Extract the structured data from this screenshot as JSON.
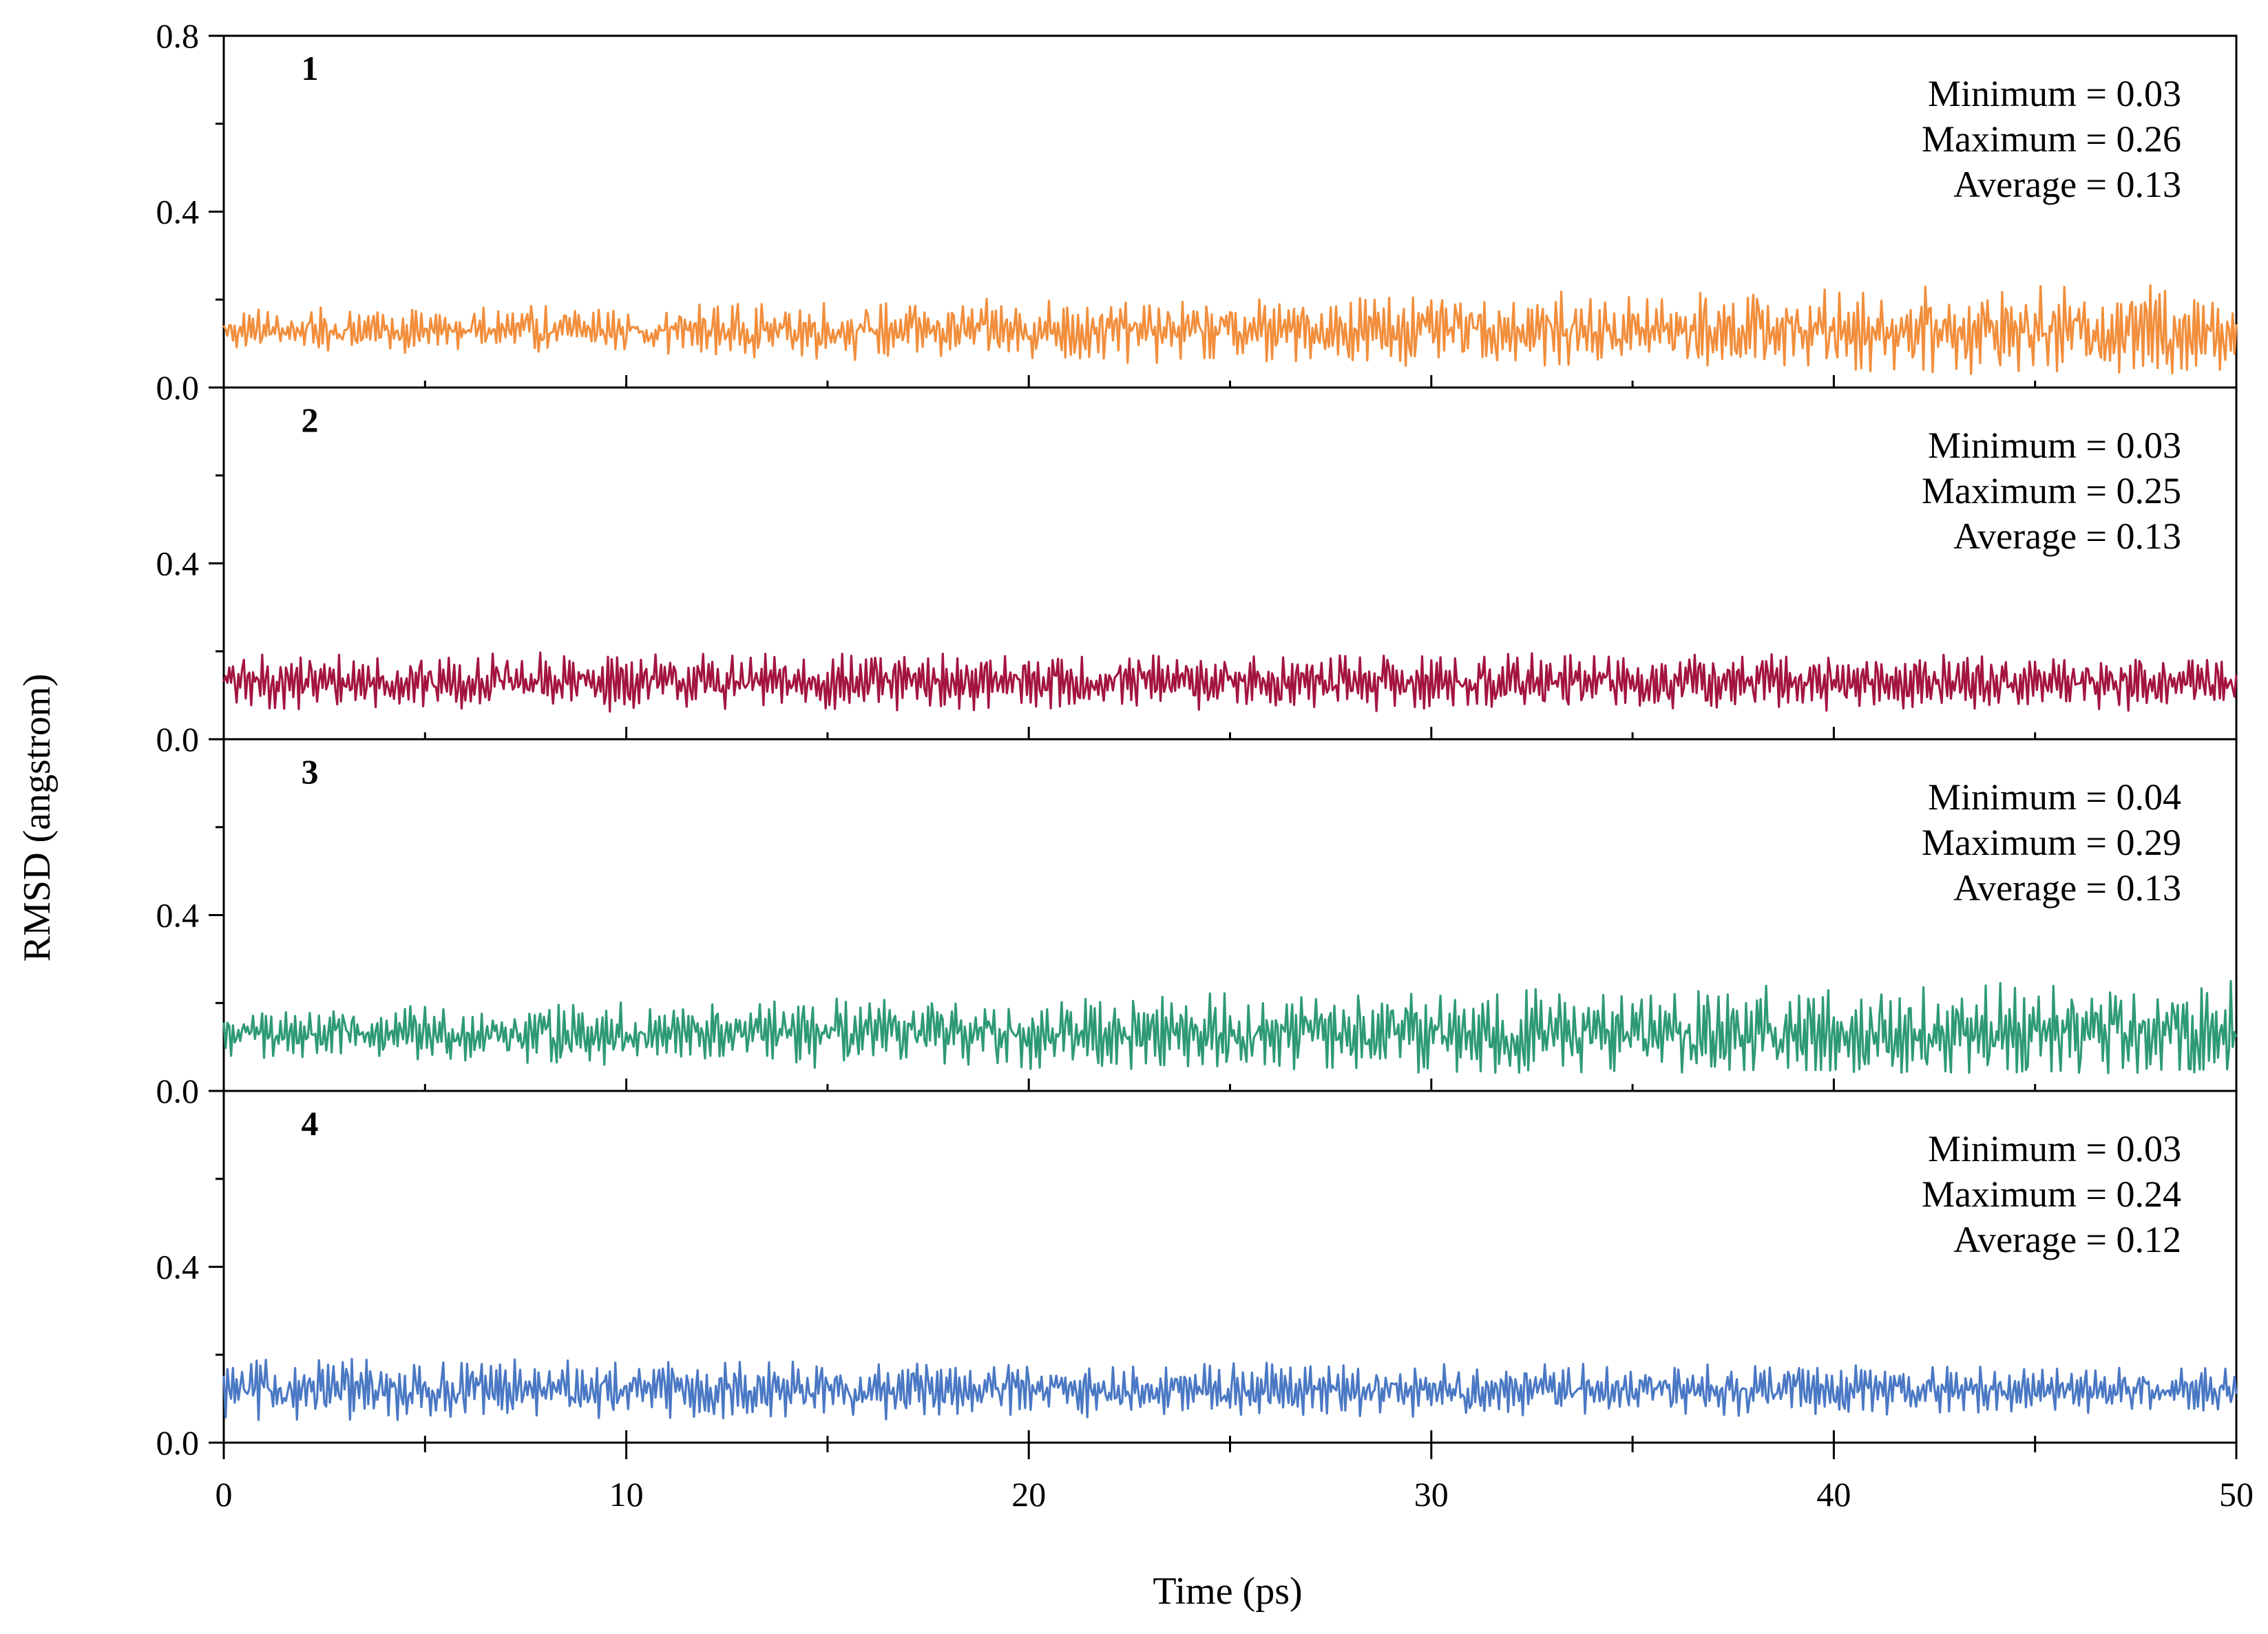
{
  "chart_data": {
    "type": "line",
    "xlabel": "Time (ps)",
    "ylabel": "RMSD (angstrom)",
    "xlim": [
      0,
      50
    ],
    "ylim": [
      0,
      0.8
    ],
    "x_ticks": [
      "0",
      "10",
      "20",
      "30",
      "40",
      "50"
    ],
    "y_ticks": [
      "0.0",
      "0.4",
      "0.8"
    ],
    "y_minor_ticks": [
      0.2,
      0.6
    ],
    "x_minor_ticks": [
      5,
      15,
      25,
      35,
      45
    ],
    "series": [
      {
        "name": "1",
        "color": "#F28E3C",
        "stats": {
          "min": "Minimum = 0.03",
          "max": "Maximum = 0.26",
          "avg": "Average = 0.13"
        },
        "minimum": 0.03,
        "maximum": 0.26,
        "average": 0.13,
        "fluct_start": 0.09,
        "fluct_end": 0.2
      },
      {
        "name": "2",
        "color": "#A3153F",
        "stats": {
          "min": "Minimum = 0.03",
          "max": "Maximum = 0.25",
          "avg": "Average = 0.13"
        },
        "minimum": 0.03,
        "maximum": 0.25,
        "average": 0.13,
        "fluct_start": 0.13,
        "fluct_end": 0.13
      },
      {
        "name": "3",
        "color": "#2E9A75",
        "stats": {
          "min": "Minimum = 0.04",
          "max": "Maximum = 0.29",
          "avg": "Average = 0.13"
        },
        "minimum": 0.04,
        "maximum": 0.29,
        "average": 0.13,
        "fluct_start": 0.1,
        "fluct_end": 0.22
      },
      {
        "name": "4",
        "color": "#4A78C4",
        "stats": {
          "min": "Minimum = 0.03",
          "max": "Maximum = 0.24",
          "avg": "Average = 0.12"
        },
        "minimum": 0.03,
        "maximum": 0.24,
        "average": 0.12,
        "fluct_start": 0.15,
        "fluct_end": 0.11
      }
    ]
  }
}
